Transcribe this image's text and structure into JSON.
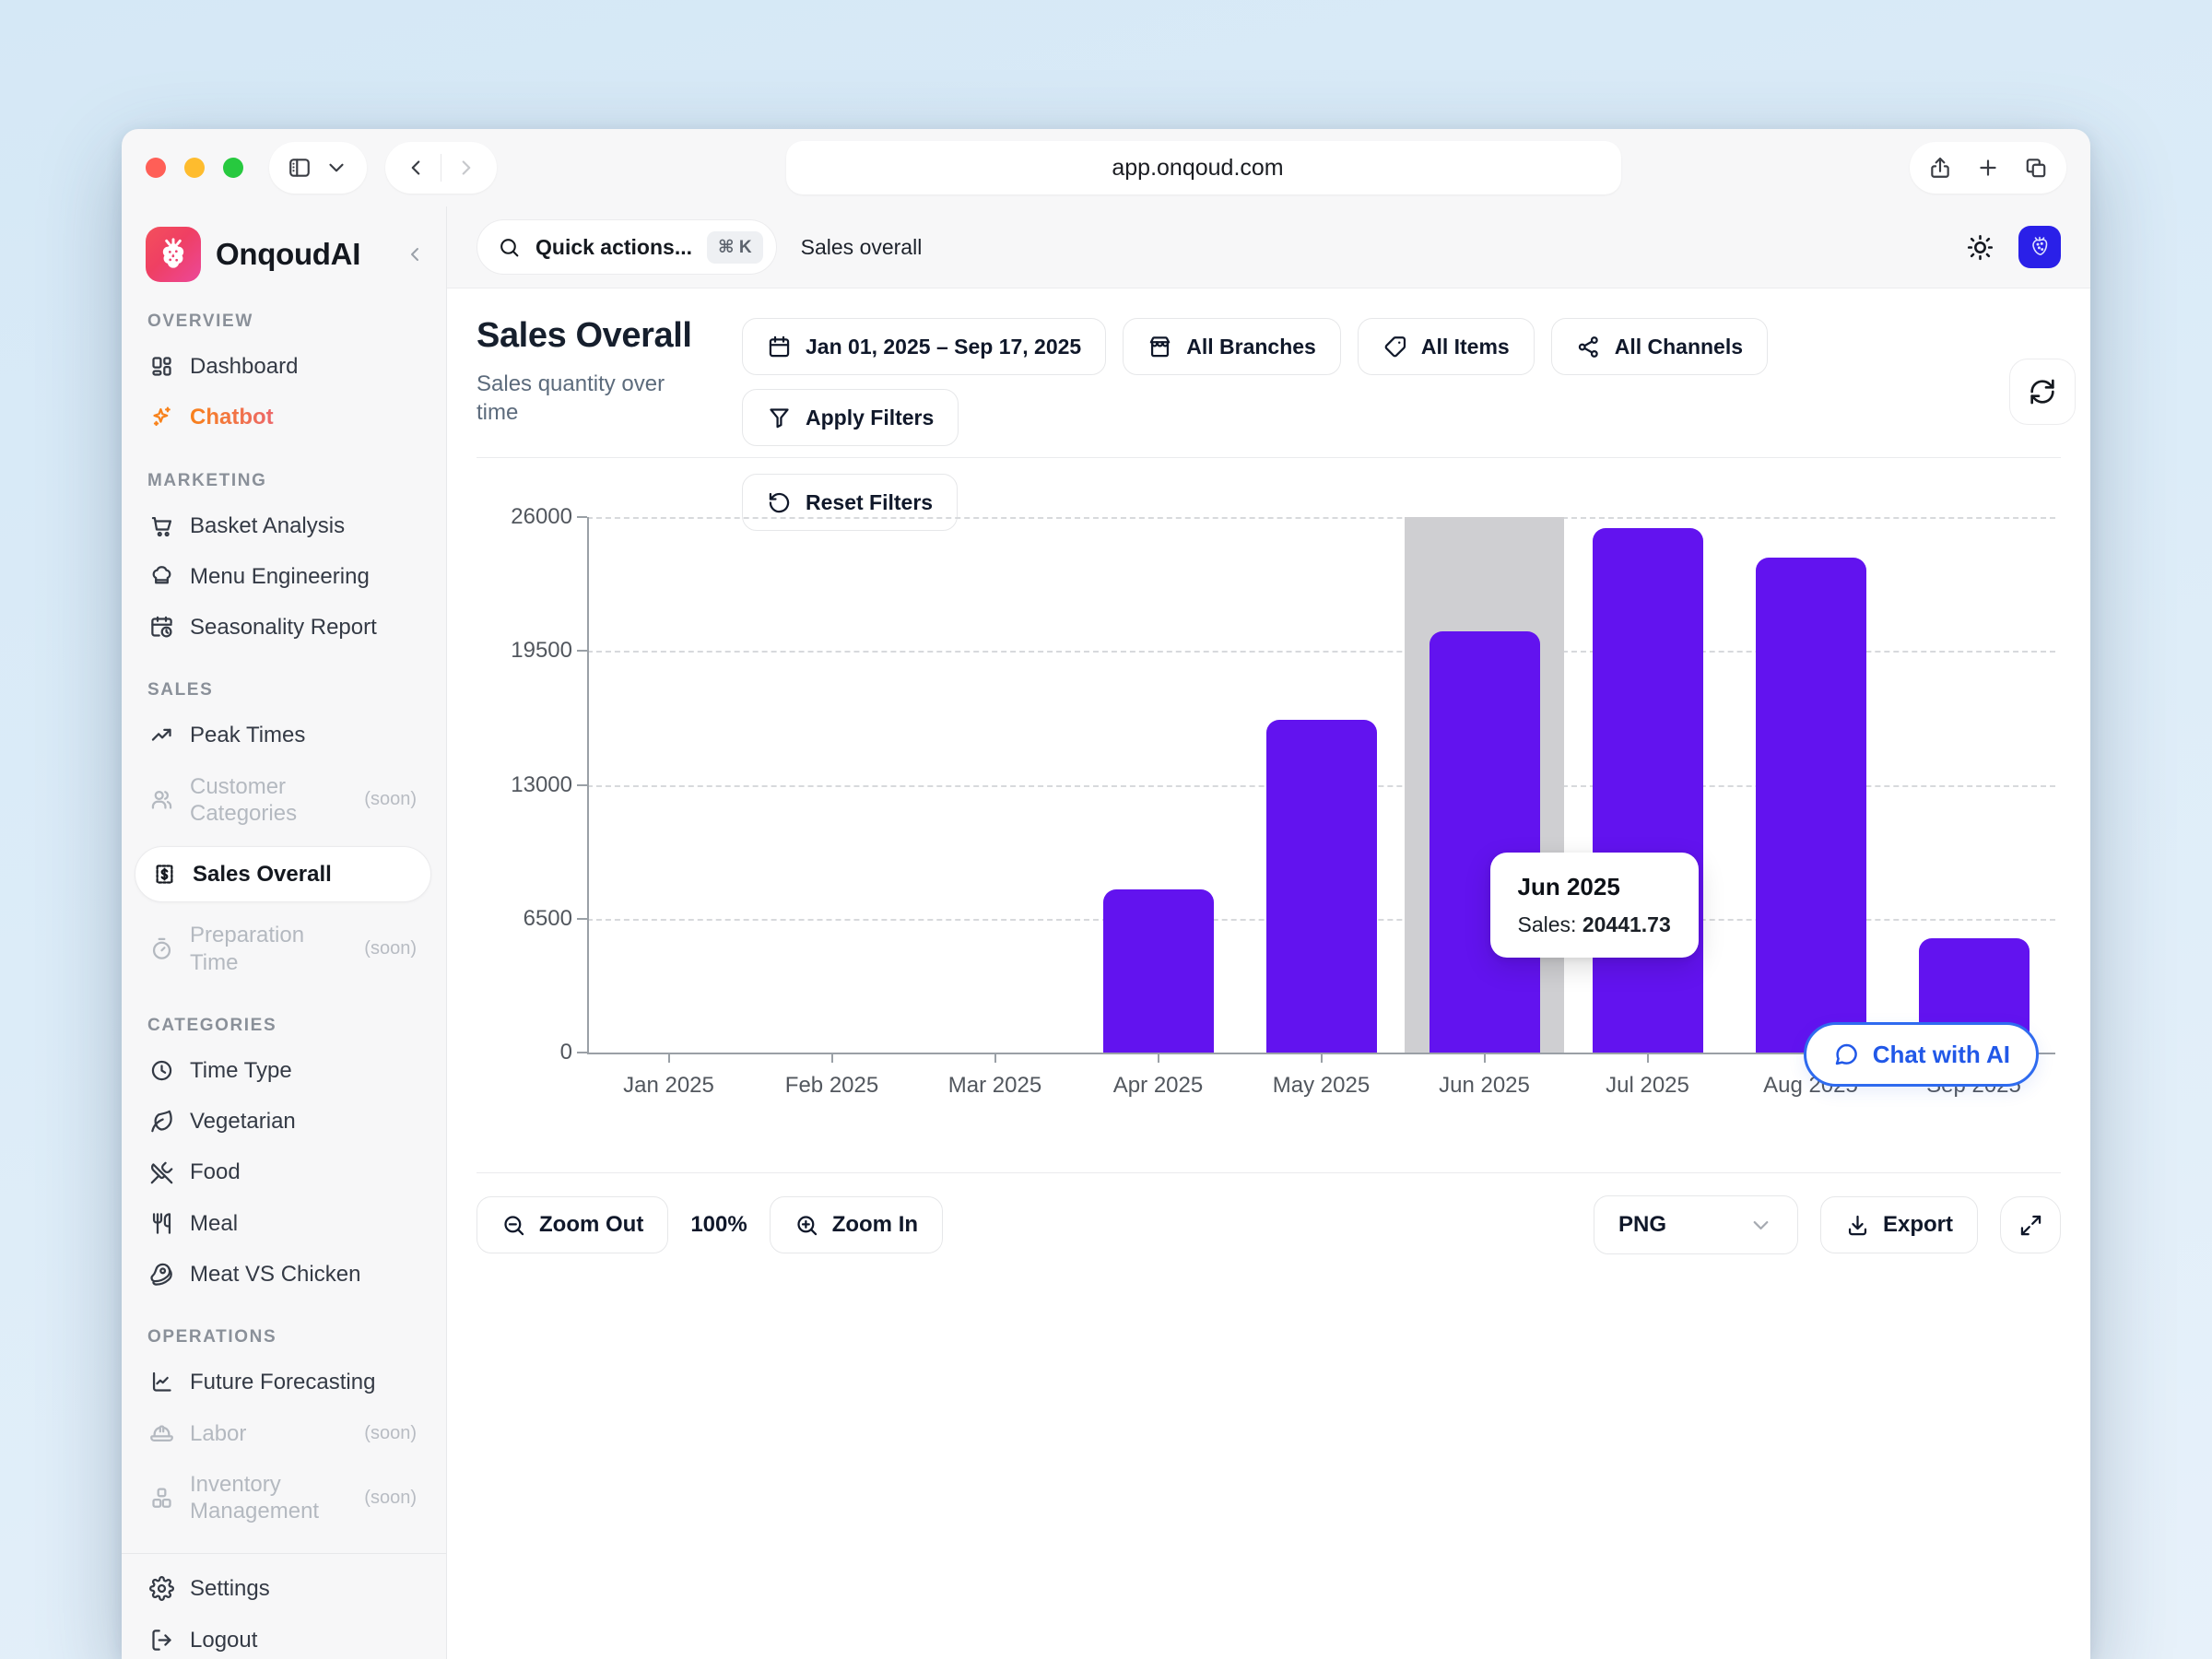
{
  "browser": {
    "url": "app.onqoud.com"
  },
  "sidebar": {
    "app_name": "OnqoudAI",
    "sections": [
      {
        "title": "OVERVIEW",
        "items": [
          {
            "label": "Dashboard",
            "icon": "dashboard"
          },
          {
            "label": "Chatbot",
            "icon": "sparkles",
            "accent": true
          }
        ]
      },
      {
        "title": "MARKETING",
        "items": [
          {
            "label": "Basket Analysis",
            "icon": "cart"
          },
          {
            "label": "Menu Engineering",
            "icon": "chef-hat"
          },
          {
            "label": "Seasonality Report",
            "icon": "calendar-clock"
          }
        ]
      },
      {
        "title": "SALES",
        "items": [
          {
            "label": "Peak Times",
            "icon": "trending-up"
          },
          {
            "label": "Customer Categories",
            "icon": "users",
            "badge": "(soon)",
            "disabled": true
          },
          {
            "label": "Sales Overall",
            "icon": "receipt-dollar",
            "active": true
          },
          {
            "label": "Preparation Time",
            "icon": "timer",
            "badge": "(soon)",
            "disabled": true
          }
        ]
      },
      {
        "title": "CATEGORIES",
        "items": [
          {
            "label": "Time Type",
            "icon": "clock"
          },
          {
            "label": "Vegetarian",
            "icon": "leaf"
          },
          {
            "label": "Food",
            "icon": "utensils-crossed"
          },
          {
            "label": "Meal",
            "icon": "utensils"
          },
          {
            "label": "Meat VS Chicken",
            "icon": "meat"
          }
        ]
      },
      {
        "title": "OPERATIONS",
        "items": [
          {
            "label": "Future Forecasting",
            "icon": "chart-line"
          },
          {
            "label": "Labor",
            "icon": "hard-hat",
            "badge": "(soon)",
            "disabled": true
          },
          {
            "label": "Inventory Management",
            "icon": "boxes",
            "badge": "(soon)",
            "disabled": true
          }
        ]
      }
    ],
    "footer_items": [
      {
        "label": "Settings",
        "icon": "gear"
      },
      {
        "label": "Logout",
        "icon": "logout"
      }
    ]
  },
  "topbar": {
    "search_label": "Quick actions...",
    "search_shortcut": "⌘ K",
    "breadcrumb": "Sales overall"
  },
  "page": {
    "title": "Sales Overall",
    "subtitle": "Sales quantity over time",
    "filters": [
      {
        "label": "Jan 01, 2025 – Sep 17, 2025",
        "icon": "calendar"
      },
      {
        "label": "All Branches",
        "icon": "store"
      },
      {
        "label": "All Items",
        "icon": "tag"
      },
      {
        "label": "All Channels",
        "icon": "share-nodes"
      },
      {
        "label": "Apply Filters",
        "icon": "funnel"
      },
      {
        "label": "Reset Filters",
        "icon": "rotate-ccw"
      }
    ]
  },
  "chart_data": {
    "type": "bar",
    "title": "Sales Overall",
    "xlabel": "",
    "ylabel": "",
    "categories": [
      "Jan 2025",
      "Feb 2025",
      "Mar 2025",
      "Apr 2025",
      "May 2025",
      "Jun 2025",
      "Jul 2025",
      "Aug 2025",
      "Sep 2025"
    ],
    "values": [
      0,
      0,
      0,
      7900,
      16150,
      20441.73,
      25450,
      24050,
      5550
    ],
    "yticks": [
      0,
      6500,
      13000,
      19500,
      26000
    ],
    "ylim": [
      0,
      26000
    ],
    "grid": "dashed horizontal",
    "bar_color": "#6213ef",
    "highlight_index": 5,
    "highlight_color": "#cfcfd2",
    "tooltip": {
      "category": "Jun 2025",
      "label": "Sales:",
      "value": "20441.73"
    }
  },
  "chat_button": {
    "label": "Chat with AI"
  },
  "toolbar": {
    "zoom_out": "Zoom Out",
    "zoom_level": "100%",
    "zoom_in": "Zoom In",
    "format": "PNG",
    "export": "Export"
  },
  "colors": {
    "accent_bar": "#6213ef",
    "chat_blue": "#2563eb",
    "logo_gradient_from": "#f4505c",
    "logo_gradient_to": "#ec4899",
    "chatbot_gradient_from": "#f8821b",
    "chatbot_gradient_to": "#b44df0",
    "traffic_red": "#ff5f57",
    "traffic_yellow": "#febc2e",
    "traffic_green": "#27c93f"
  }
}
